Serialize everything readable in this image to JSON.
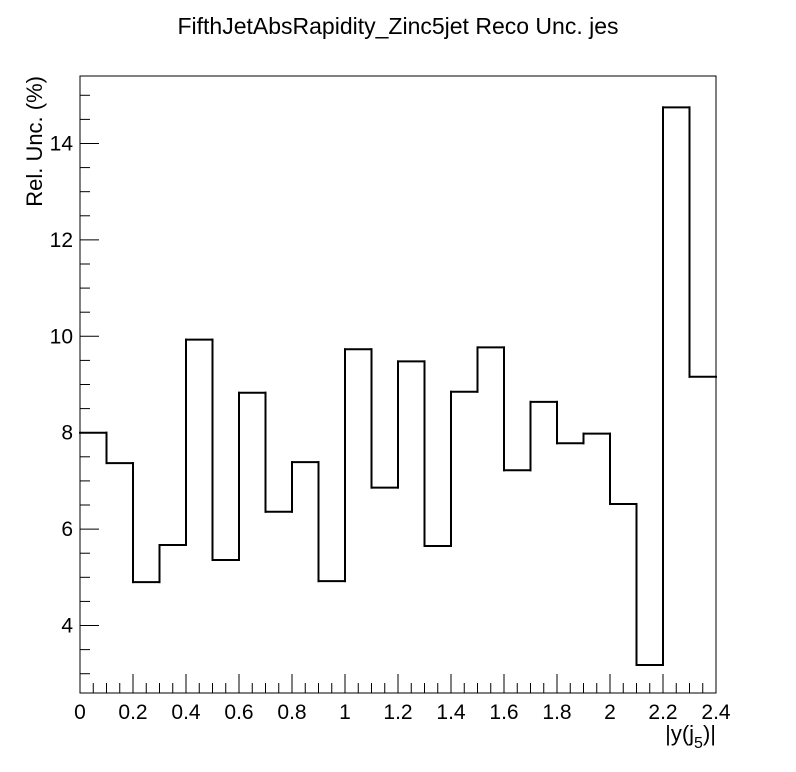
{
  "chart_data": {
    "type": "bar",
    "style": "step-histogram",
    "title": "FifthJetAbsRapidity_Zinc5jet Reco Unc. jes",
    "xlabel": {
      "main": "|y(j",
      "sub": "5",
      "tail": ")|"
    },
    "ylabel": "Rel. Unc. (%)",
    "xlim": [
      0,
      2.4
    ],
    "ylim": [
      2.6,
      15.4
    ],
    "bin_edges": [
      0,
      0.1,
      0.2,
      0.3,
      0.4,
      0.5,
      0.6,
      0.7,
      0.8,
      0.9,
      1.0,
      1.1,
      1.2,
      1.3,
      1.4,
      1.5,
      1.6,
      1.7,
      1.8,
      1.9,
      2.0,
      2.1,
      2.2,
      2.3,
      2.4
    ],
    "values": [
      8.0,
      7.37,
      4.9,
      5.67,
      9.93,
      5.36,
      8.83,
      6.36,
      7.39,
      4.92,
      9.73,
      6.86,
      9.48,
      5.65,
      8.85,
      9.77,
      7.22,
      8.64,
      7.78,
      7.98,
      6.52,
      3.18,
      14.75,
      9.16
    ],
    "x_major_ticks": [
      0,
      0.2,
      0.4,
      0.6,
      0.8,
      1.0,
      1.2,
      1.4,
      1.6,
      1.8,
      2.0,
      2.2,
      2.4
    ],
    "x_tick_labels": [
      "0",
      "0.2",
      "0.4",
      "0.6",
      "0.8",
      "1",
      "1.2",
      "1.4",
      "1.6",
      "1.8",
      "2",
      "2.2",
      "2.4"
    ],
    "y_major_ticks": [
      4,
      6,
      8,
      10,
      12,
      14
    ],
    "y_tick_labels": [
      "4",
      "6",
      "8",
      "10",
      "12",
      "14"
    ],
    "line_color": "#000000",
    "grid": false,
    "legend": "none"
  }
}
